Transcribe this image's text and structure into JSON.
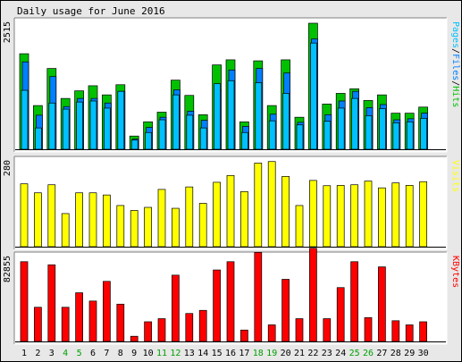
{
  "chart_data": {
    "type": "bar",
    "title": "Daily usage for June 2016",
    "days": [
      "1",
      "2",
      "3",
      "4",
      "5",
      "6",
      "7",
      "8",
      "9",
      "10",
      "11",
      "12",
      "13",
      "14",
      "15",
      "16",
      "17",
      "18",
      "19",
      "20",
      "21",
      "22",
      "23",
      "24",
      "25",
      "26",
      "27",
      "28",
      "29",
      "30"
    ],
    "weekend_days": [
      4,
      5,
      11,
      12,
      18,
      19,
      25,
      26
    ],
    "colors": {
      "hits": "#00c000",
      "files": "#0080ff",
      "pages": "#00c0ff",
      "visits": "#ffff00",
      "kbytes": "#ff0000",
      "weekday_label": "#000000",
      "weekend_label": "#00a000"
    },
    "panels": [
      {
        "id": "hits-files-pages",
        "axis_max_label": "2515",
        "ymax": 2515,
        "legend": [
          {
            "label": "Pages",
            "color": "#00c0ff"
          },
          {
            "label": "Files",
            "color": "#0080ff"
          },
          {
            "label": "Hits",
            "color": "#00c000"
          }
        ],
        "legend_separator": "/",
        "series": [
          {
            "name": "Hits",
            "values": [
              1880,
              860,
              1590,
              1000,
              1150,
              1250,
              1070,
              1270,
              260,
              540,
              730,
              1360,
              1060,
              680,
              1660,
              1760,
              540,
              1740,
              860,
              1760,
              630,
              2480,
              890,
              1100,
              1190,
              960,
              1070,
              710,
              710,
              830
            ]
          },
          {
            "name": "Files",
            "values": [
              1720,
              670,
              1430,
              840,
              1000,
              1000,
              910,
              1140,
              200,
              430,
              630,
              1170,
              750,
              570,
              1160,
              1560,
              450,
              1590,
              690,
              1500,
              530,
              2170,
              680,
              950,
              1140,
              820,
              880,
              580,
              600,
              710
            ]
          },
          {
            "name": "Pages",
            "values": [
              1160,
              420,
              910,
              790,
              930,
              950,
              810,
              1140,
              180,
              330,
              580,
              1070,
              670,
              420,
              1290,
              1350,
              330,
              1310,
              560,
              1100,
              480,
              2090,
              550,
              810,
              1000,
              660,
              800,
              520,
              540,
              610
            ]
          }
        ]
      },
      {
        "id": "visits",
        "axis_max_label": "280",
        "ymax": 280,
        "legend": [
          {
            "label": "Visits",
            "color": "#ffff00"
          }
        ],
        "series": [
          {
            "name": "Visits",
            "values": [
              203,
              174,
              200,
              107,
              174,
              174,
              167,
              133,
              117,
              127,
              185,
              124,
              193,
              140,
              208,
              230,
              178,
              270,
              275,
              227,
              133,
              214,
              197,
              198,
              200,
              212,
              190,
              206,
              198,
              210
            ]
          }
        ]
      },
      {
        "id": "kbytes",
        "axis_max_label": "82855",
        "ymax": 82855,
        "legend": [
          {
            "label": "KBytes",
            "color": "#ff0000"
          }
        ],
        "series": [
          {
            "name": "KBytes",
            "values": [
              77000,
              33000,
              74000,
              33000,
              47000,
              39000,
              58000,
              36000,
              5000,
              19000,
              22000,
              64000,
              27000,
              30000,
              69000,
              77000,
              11000,
              86000,
              16000,
              60000,
              22000,
              90000,
              22000,
              52000,
              77000,
              23000,
              72000,
              20000,
              16000,
              19000
            ]
          }
        ]
      }
    ]
  }
}
